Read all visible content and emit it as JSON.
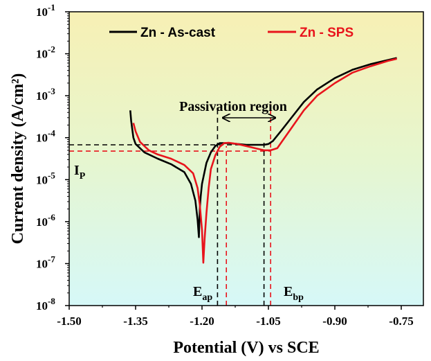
{
  "chart_data": {
    "type": "line",
    "xlabel": "Potential (V) vs SCE",
    "ylabel": "Current density (A/cm²)",
    "xlim": [
      -1.5,
      -0.7
    ],
    "ylim_log10": [
      -8,
      -1
    ],
    "y_scale": "log",
    "x_ticks": [
      "-1.50",
      "-1.35",
      "-1.20",
      "-1.05",
      "-0.90",
      "-0.75"
    ],
    "x_tick_values": [
      -1.5,
      -1.35,
      -1.2,
      -1.05,
      -0.9,
      -0.75
    ],
    "y_ticks": [
      {
        "base": "10",
        "exp": "-1",
        "value": -1
      },
      {
        "base": "10",
        "exp": "-2",
        "value": -2
      },
      {
        "base": "10",
        "exp": "-3",
        "value": -3
      },
      {
        "base": "10",
        "exp": "-4",
        "value": -4
      },
      {
        "base": "10",
        "exp": "-5",
        "value": -5
      },
      {
        "base": "10",
        "exp": "-6",
        "value": -6
      },
      {
        "base": "10",
        "exp": "-7",
        "value": -7
      },
      {
        "base": "10",
        "exp": "-8",
        "value": -8
      }
    ],
    "legend_position": "top",
    "series": [
      {
        "name": "Zn - As-cast",
        "color": "#000000",
        "points": [
          [
            -1.362,
            -3.35
          ],
          [
            -1.36,
            -3.6
          ],
          [
            -1.355,
            -4.0
          ],
          [
            -1.35,
            -4.15
          ],
          [
            -1.33,
            -4.35
          ],
          [
            -1.3,
            -4.5
          ],
          [
            -1.27,
            -4.63
          ],
          [
            -1.24,
            -4.82
          ],
          [
            -1.225,
            -5.1
          ],
          [
            -1.215,
            -5.5
          ],
          [
            -1.21,
            -5.95
          ],
          [
            -1.207,
            -6.37
          ],
          [
            -1.205,
            -5.7
          ],
          [
            -1.203,
            -5.4
          ],
          [
            -1.2,
            -5.1
          ],
          [
            -1.19,
            -4.6
          ],
          [
            -1.18,
            -4.35
          ],
          [
            -1.17,
            -4.2
          ],
          [
            -1.16,
            -4.13
          ],
          [
            -1.14,
            -4.13
          ],
          [
            -1.12,
            -4.15
          ],
          [
            -1.1,
            -4.17
          ],
          [
            -1.08,
            -4.17
          ],
          [
            -1.06,
            -4.17
          ],
          [
            -1.05,
            -4.15
          ],
          [
            -1.04,
            -4.08
          ],
          [
            -1.02,
            -3.82
          ],
          [
            -1.0,
            -3.55
          ],
          [
            -0.97,
            -3.15
          ],
          [
            -0.94,
            -2.85
          ],
          [
            -0.9,
            -2.58
          ],
          [
            -0.86,
            -2.38
          ],
          [
            -0.82,
            -2.25
          ],
          [
            -0.78,
            -2.15
          ],
          [
            -0.76,
            -2.1
          ]
        ]
      },
      {
        "name": "Zn - SPS",
        "color": "#e8141c",
        "points": [
          [
            -1.355,
            -3.65
          ],
          [
            -1.35,
            -3.85
          ],
          [
            -1.34,
            -4.1
          ],
          [
            -1.32,
            -4.3
          ],
          [
            -1.3,
            -4.4
          ],
          [
            -1.27,
            -4.5
          ],
          [
            -1.24,
            -4.65
          ],
          [
            -1.22,
            -4.85
          ],
          [
            -1.21,
            -5.2
          ],
          [
            -1.205,
            -5.6
          ],
          [
            -1.2,
            -6.2
          ],
          [
            -1.197,
            -6.98
          ],
          [
            -1.194,
            -6.4
          ],
          [
            -1.19,
            -5.8
          ],
          [
            -1.185,
            -5.2
          ],
          [
            -1.18,
            -4.75
          ],
          [
            -1.17,
            -4.42
          ],
          [
            -1.16,
            -4.22
          ],
          [
            -1.15,
            -4.13
          ],
          [
            -1.14,
            -4.12
          ],
          [
            -1.12,
            -4.15
          ],
          [
            -1.1,
            -4.2
          ],
          [
            -1.08,
            -4.25
          ],
          [
            -1.06,
            -4.3
          ],
          [
            -1.045,
            -4.3
          ],
          [
            -1.03,
            -4.25
          ],
          [
            -1.02,
            -4.1
          ],
          [
            -1.0,
            -3.8
          ],
          [
            -0.97,
            -3.35
          ],
          [
            -0.94,
            -3.0
          ],
          [
            -0.9,
            -2.7
          ],
          [
            -0.86,
            -2.45
          ],
          [
            -0.82,
            -2.3
          ],
          [
            -0.78,
            -2.17
          ],
          [
            -0.76,
            -2.12
          ]
        ]
      }
    ],
    "reference_lines": [
      {
        "orientation": "h",
        "log_value": -4.17,
        "x_to": -1.06,
        "color": "#000000"
      },
      {
        "orientation": "h",
        "log_value": -4.32,
        "x_to": -1.045,
        "color": "#e8141c"
      },
      {
        "orientation": "v",
        "value": -1.165,
        "log_from": -8,
        "log_to": -3.2,
        "color": "#000000"
      },
      {
        "orientation": "v",
        "value": -1.06,
        "log_from": -8,
        "log_to": -4.1,
        "color": "#000000"
      },
      {
        "orientation": "v",
        "value": -1.145,
        "log_from": -8,
        "log_to": -4.2,
        "color": "#e8141c"
      },
      {
        "orientation": "v",
        "value": -1.045,
        "log_from": -8,
        "log_to": -3.2,
        "color": "#e8141c"
      }
    ],
    "annotations": {
      "passivation": "Passivation region",
      "ip_main": "I",
      "ip_sub": "P",
      "eap_main": "E",
      "eap_sub": "ap",
      "ebp_main": "E",
      "ebp_sub": "bp"
    }
  }
}
